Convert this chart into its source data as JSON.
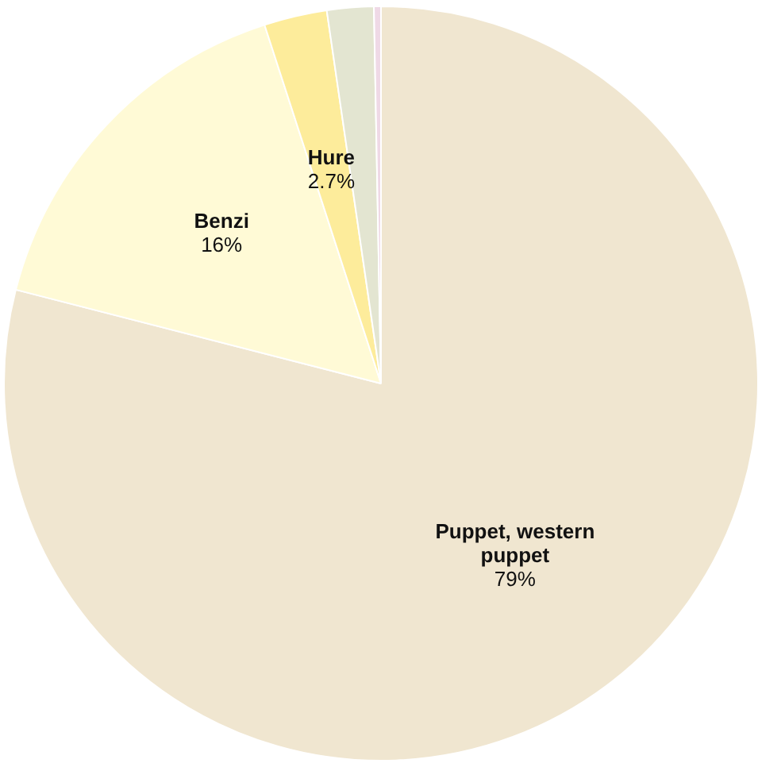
{
  "chart_data": {
    "type": "pie",
    "categories": [
      "Puppet, western puppet",
      "Benzi",
      "Hure",
      null,
      null
    ],
    "values": [
      79,
      16,
      2.7,
      2.0,
      0.3
    ],
    "colors": [
      "#f0e6d0",
      "#fffad6",
      "#fdec9b",
      "#e3e5d1",
      "#efd9e6"
    ],
    "value_labels": [
      "79%",
      "16%",
      "2.7%",
      null,
      null
    ],
    "legend": false
  }
}
